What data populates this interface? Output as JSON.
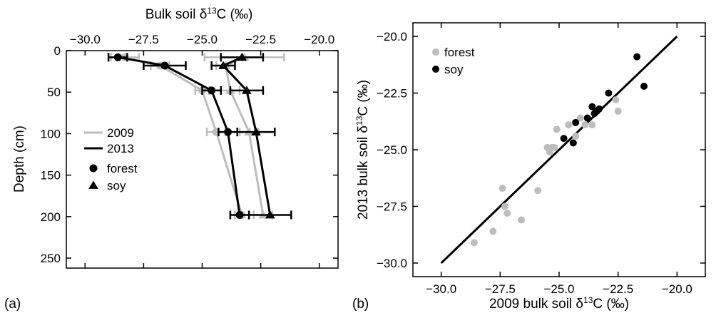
{
  "figure": {
    "panel_a_label": "(a)",
    "panel_b_label": "(b)"
  },
  "colors": {
    "y2009": "#bdbdbd",
    "y2013": "#000000",
    "forest": "#bdbdbd",
    "soy": "#000000"
  },
  "chart_data": [
    {
      "type": "line",
      "panel": "(a)",
      "title": "",
      "xlabel": "Bulk soil δ13C (‰)",
      "ylabel": "Depth (cm)",
      "x_axis_position": "top",
      "xlim": [
        -30.8,
        -19.2
      ],
      "ylim": [
        0,
        262
      ],
      "y_inverted": true,
      "x_ticks": [
        -30.0,
        -27.5,
        -25.0,
        -22.5,
        -20.0
      ],
      "x_tick_labels": [
        "−30.0",
        "−27.5",
        "−25.0",
        "−22.5",
        "−20.0"
      ],
      "y_ticks": [
        0,
        50,
        100,
        150,
        200,
        250
      ],
      "y_tick_labels": [
        "0",
        "50",
        "100",
        "150",
        "200",
        "250"
      ],
      "legend": {
        "position": "left-middle",
        "entries": [
          {
            "label": "2009",
            "kind": "line",
            "color": "#bdbdbd"
          },
          {
            "label": "2013",
            "kind": "line",
            "color": "#000000"
          },
          {
            "label": "forest",
            "kind": "marker",
            "marker": "circle"
          },
          {
            "label": "soy",
            "kind": "marker",
            "marker": "triangle"
          }
        ]
      },
      "series": [
        {
          "year": "2009",
          "site": "forest",
          "color": "#bdbdbd",
          "marker": "circle",
          "x": [
            -28.3,
            -26.8,
            -25.0,
            -24.4,
            -23.3
          ],
          "y": [
            8,
            18,
            48,
            98,
            198
          ],
          "xerr": [
            0.6,
            0.4,
            0.3,
            0.4,
            0.3
          ]
        },
        {
          "year": "2009",
          "site": "soy",
          "color": "#bdbdbd",
          "marker": "triangle",
          "x": [
            -23.2,
            -24.0,
            -23.8,
            -23.0,
            -22.4
          ],
          "y": [
            8,
            18,
            48,
            98,
            198
          ],
          "xerr": [
            1.7,
            0.4,
            0.4,
            0.4,
            0.4
          ]
        },
        {
          "year": "2013",
          "site": "forest",
          "color": "#000000",
          "marker": "circle",
          "x": [
            -28.6,
            -26.6,
            -24.6,
            -23.9,
            -23.4
          ],
          "y": [
            8,
            18,
            48,
            98,
            198
          ],
          "xerr": [
            0.4,
            0.9,
            0.4,
            0.4,
            0.4
          ]
        },
        {
          "year": "2013",
          "site": "soy",
          "color": "#000000",
          "marker": "triangle",
          "x": [
            -23.3,
            -24.1,
            -23.1,
            -22.7,
            -22.1
          ],
          "y": [
            8,
            18,
            48,
            98,
            198
          ],
          "xerr": [
            0.9,
            0.5,
            0.7,
            0.8,
            0.9
          ]
        }
      ]
    },
    {
      "type": "scatter",
      "panel": "(b)",
      "title": "",
      "xlabel": "2009 bulk soil δ13C (‰)",
      "ylabel": "2013 bulk soil δ13C (‰)",
      "xlim": [
        -31.2,
        -18.8
      ],
      "ylim": [
        -30.6,
        -19.4
      ],
      "x_ticks": [
        -30.0,
        -27.5,
        -25.0,
        -22.5,
        -20.0
      ],
      "x_tick_labels": [
        "−30.0",
        "−27.5",
        "−25.0",
        "−22.5",
        "−20.0"
      ],
      "y_ticks": [
        -30.0,
        -27.5,
        -25.0,
        -22.5,
        -20.0
      ],
      "y_tick_labels": [
        "−30.0",
        "−27.5",
        "−25.0",
        "−22.5",
        "−20.0"
      ],
      "legend": {
        "position": "top-left",
        "entries": [
          {
            "label": "forest",
            "color": "#bdbdbd"
          },
          {
            "label": "soy",
            "color": "#000000"
          }
        ]
      },
      "reference_line": {
        "x": [
          -30.0,
          -20.0
        ],
        "y": [
          -30.0,
          -20.0
        ]
      },
      "series": [
        {
          "site": "forest",
          "color": "#bdbdbd",
          "x": [
            -28.6,
            -27.8,
            -27.4,
            -27.3,
            -27.2,
            -26.6,
            -25.9,
            -25.5,
            -25.4,
            -25.3,
            -25.2,
            -25.1,
            -24.6,
            -24.3,
            -24.1,
            -23.9,
            -23.6,
            -22.6,
            -22.5
          ],
          "y": [
            -29.1,
            -28.6,
            -26.7,
            -27.5,
            -27.8,
            -28.1,
            -26.8,
            -24.9,
            -25.1,
            -24.9,
            -24.9,
            -24.1,
            -23.9,
            -24.4,
            -23.6,
            -23.9,
            -23.9,
            -22.8,
            -23.3
          ]
        },
        {
          "site": "soy",
          "color": "#000000",
          "x": [
            -24.8,
            -24.4,
            -24.3,
            -23.8,
            -23.6,
            -23.5,
            -23.4,
            -23.3,
            -22.9,
            -21.7,
            -21.4
          ],
          "y": [
            -24.5,
            -24.7,
            -23.8,
            -23.6,
            -23.1,
            -23.4,
            -23.3,
            -23.2,
            -22.5,
            -20.9,
            -22.2
          ]
        }
      ]
    }
  ]
}
